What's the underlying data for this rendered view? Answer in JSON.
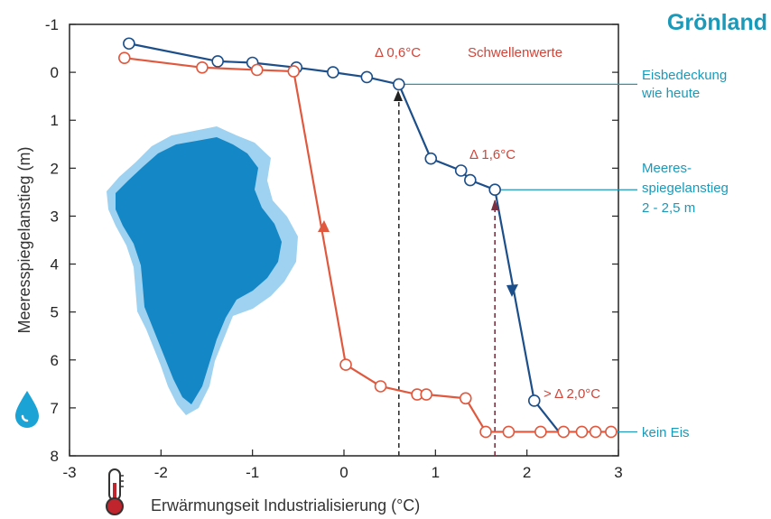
{
  "chart_data": {
    "type": "line",
    "title": "Grönland",
    "xlabel": "Erwärmungseit Industrialisierung (°C)",
    "ylabel": "Meeresspiegelanstieg (m)",
    "xlim": [
      -3,
      3
    ],
    "ylim": [
      -1,
      8
    ],
    "y_inverted": true,
    "x_ticks": [
      "-3",
      "-2",
      "-1",
      "0",
      "1",
      "2",
      "3"
    ],
    "y_ticks": [
      "-1",
      "0",
      "1",
      "2",
      "3",
      "4",
      "5",
      "6",
      "7",
      "8"
    ],
    "grid": false,
    "series": [
      {
        "color": "#1c4f8a",
        "x": [
          -2.35,
          -1.38,
          -1.0,
          -0.52,
          -0.12,
          0.25,
          0.6,
          0.95,
          1.28,
          1.38,
          1.65,
          2.08,
          2.35
        ],
        "values": [
          -0.6,
          -0.23,
          -0.2,
          -0.1,
          0.0,
          0.1,
          0.25,
          1.8,
          2.05,
          2.25,
          2.45,
          6.85,
          7.5
        ]
      },
      {
        "color": "#e0593f",
        "x": [
          -2.4,
          -1.55,
          -0.95,
          -0.55,
          0.02,
          0.4,
          0.8,
          0.9,
          1.33,
          1.55,
          1.8,
          2.15,
          2.4,
          2.6,
          2.75,
          2.92
        ],
        "values": [
          -0.3,
          -0.1,
          -0.05,
          -0.02,
          6.1,
          6.55,
          6.72,
          6.72,
          6.8,
          7.5,
          7.5,
          7.5,
          7.5,
          7.5,
          7.5,
          7.5
        ]
      }
    ],
    "annotations": {
      "delta1": "Δ 0,6°C",
      "schwellen": "Schwellenwerte",
      "delta2": "Δ 1,6°C",
      "delta3": "> Δ 2,0°C",
      "eis_line1": "Eisbedeckung",
      "eis_line2": "wie heute",
      "meer_line1": "Meeres-",
      "meer_line2": "spiegelanstieg",
      "meer_line3": "2 - 2,5 m",
      "kein": "kein Eis"
    },
    "dashed_lines": [
      {
        "x": 0.6,
        "color": "#333333"
      },
      {
        "x": 1.65,
        "color": "#7a3040"
      }
    ],
    "colors": {
      "blue_line": "#1c4f8a",
      "red_line": "#e0593f",
      "accent": "#1b99b8",
      "greenland_fill": "#1487c6",
      "greenland_edge": "#9fd2f0"
    },
    "icons": [
      "greenland-map-icon",
      "water-drop-icon",
      "thermometer-icon"
    ]
  }
}
